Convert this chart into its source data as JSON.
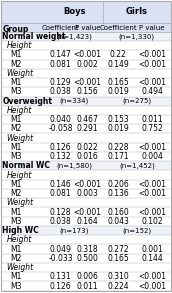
{
  "title_boys": "Boys",
  "title_girls": "Girls",
  "col_headers": [
    "Coefficient",
    "P value",
    "Coefficient",
    "P value"
  ],
  "col_group": "Group",
  "rows": [
    {
      "label": "Normal weight",
      "indent": 0,
      "bold": true,
      "boys_coef": "",
      "boys_p": "(n=1,423)",
      "girls_coef": "",
      "girls_p": "(n=1,330)",
      "span": true
    },
    {
      "label": "  Height",
      "indent": 1,
      "bold": false,
      "section": true
    },
    {
      "label": "    M1",
      "indent": 2,
      "bold": false,
      "boys_coef": "0.147",
      "boys_p": "<0.001",
      "girls_coef": "0.22",
      "girls_p": "<0.001"
    },
    {
      "label": "    M2",
      "indent": 2,
      "bold": false,
      "boys_coef": "0.081",
      "boys_p": "0.002",
      "girls_coef": "0.149",
      "girls_p": "<0.001"
    },
    {
      "label": "  Weight",
      "indent": 1,
      "bold": false,
      "section": true
    },
    {
      "label": "    M1",
      "indent": 2,
      "bold": false,
      "boys_coef": "0.129",
      "boys_p": "<0.001",
      "girls_coef": "0.165",
      "girls_p": "<0.001"
    },
    {
      "label": "    M3",
      "indent": 2,
      "bold": false,
      "boys_coef": "0.038",
      "boys_p": "0.156",
      "girls_coef": "0.019",
      "girls_p": "0.494"
    },
    {
      "label": "Overweight",
      "indent": 0,
      "bold": true,
      "boys_coef": "",
      "boys_p": "(n=334)",
      "girls_coef": "",
      "girls_p": "(n=275)",
      "span": true
    },
    {
      "label": "  Height",
      "indent": 1,
      "bold": false,
      "section": true
    },
    {
      "label": "    M1",
      "indent": 2,
      "bold": false,
      "boys_coef": "0.040",
      "boys_p": "0.467",
      "girls_coef": "0.153",
      "girls_p": "0.011"
    },
    {
      "label": "    M2",
      "indent": 2,
      "bold": false,
      "boys_coef": "-0.058",
      "boys_p": "0.291",
      "girls_coef": "0.019",
      "girls_p": "0.752"
    },
    {
      "label": "  Weight",
      "indent": 1,
      "bold": false,
      "section": true
    },
    {
      "label": "    M1",
      "indent": 2,
      "bold": false,
      "boys_coef": "0.126",
      "boys_p": "0.022",
      "girls_coef": "0.228",
      "girls_p": "<0.001"
    },
    {
      "label": "    M3",
      "indent": 2,
      "bold": false,
      "boys_coef": "0.132",
      "boys_p": "0.016",
      "girls_coef": "0.171",
      "girls_p": "0.004"
    },
    {
      "label": "Normal WC",
      "indent": 0,
      "bold": true,
      "boys_coef": "",
      "boys_p": "(n=1,580)",
      "girls_coef": "",
      "girls_p": "(n=1,452)",
      "span": true
    },
    {
      "label": "  Height",
      "indent": 1,
      "bold": false,
      "section": true
    },
    {
      "label": "    M1",
      "indent": 2,
      "bold": false,
      "boys_coef": "0.146",
      "boys_p": "<0.001",
      "girls_coef": "0.206",
      "girls_p": "<0.001"
    },
    {
      "label": "    M2",
      "indent": 2,
      "bold": false,
      "boys_coef": "0.081",
      "boys_p": "0.003",
      "girls_coef": "0.136",
      "girls_p": "<0.001"
    },
    {
      "label": "  Weight",
      "indent": 1,
      "bold": false,
      "section": true
    },
    {
      "label": "    M1",
      "indent": 2,
      "bold": false,
      "boys_coef": "0.128",
      "boys_p": "<0.001",
      "girls_coef": "0.160",
      "girls_p": "<0.001"
    },
    {
      "label": "    M3",
      "indent": 2,
      "bold": false,
      "boys_coef": "0.038",
      "boys_p": "0.164",
      "girls_coef": "0.043",
      "girls_p": "0.102"
    },
    {
      "label": "High WC",
      "indent": 0,
      "bold": true,
      "boys_coef": "",
      "boys_p": "(n=173)",
      "girls_coef": "",
      "girls_p": "(n=152)",
      "span": true
    },
    {
      "label": "  Height",
      "indent": 1,
      "bold": false,
      "section": true
    },
    {
      "label": "    M1",
      "indent": 2,
      "bold": false,
      "boys_coef": "0.049",
      "boys_p": "0.318",
      "girls_coef": "0.272",
      "girls_p": "0.001"
    },
    {
      "label": "    M2",
      "indent": 2,
      "bold": false,
      "boys_coef": "-0.033",
      "boys_p": "0.500",
      "girls_coef": "0.165",
      "girls_p": "0.144"
    },
    {
      "label": "  Weight",
      "indent": 1,
      "bold": false,
      "section": true
    },
    {
      "label": "    M1",
      "indent": 2,
      "bold": false,
      "boys_coef": "0.131",
      "boys_p": "0.006",
      "girls_coef": "0.310",
      "girls_p": "<0.001"
    },
    {
      "label": "    M3",
      "indent": 2,
      "bold": false,
      "boys_coef": "0.126",
      "boys_p": "0.011",
      "girls_coef": "0.224",
      "girls_p": "<0.001"
    }
  ],
  "bg_color": "#ffffff",
  "header_bg": "#d9e1f2",
  "alt_bg": "#eef1f8",
  "border_color": "#aaaaaa",
  "text_color": "#000000",
  "font_size": 5.5
}
